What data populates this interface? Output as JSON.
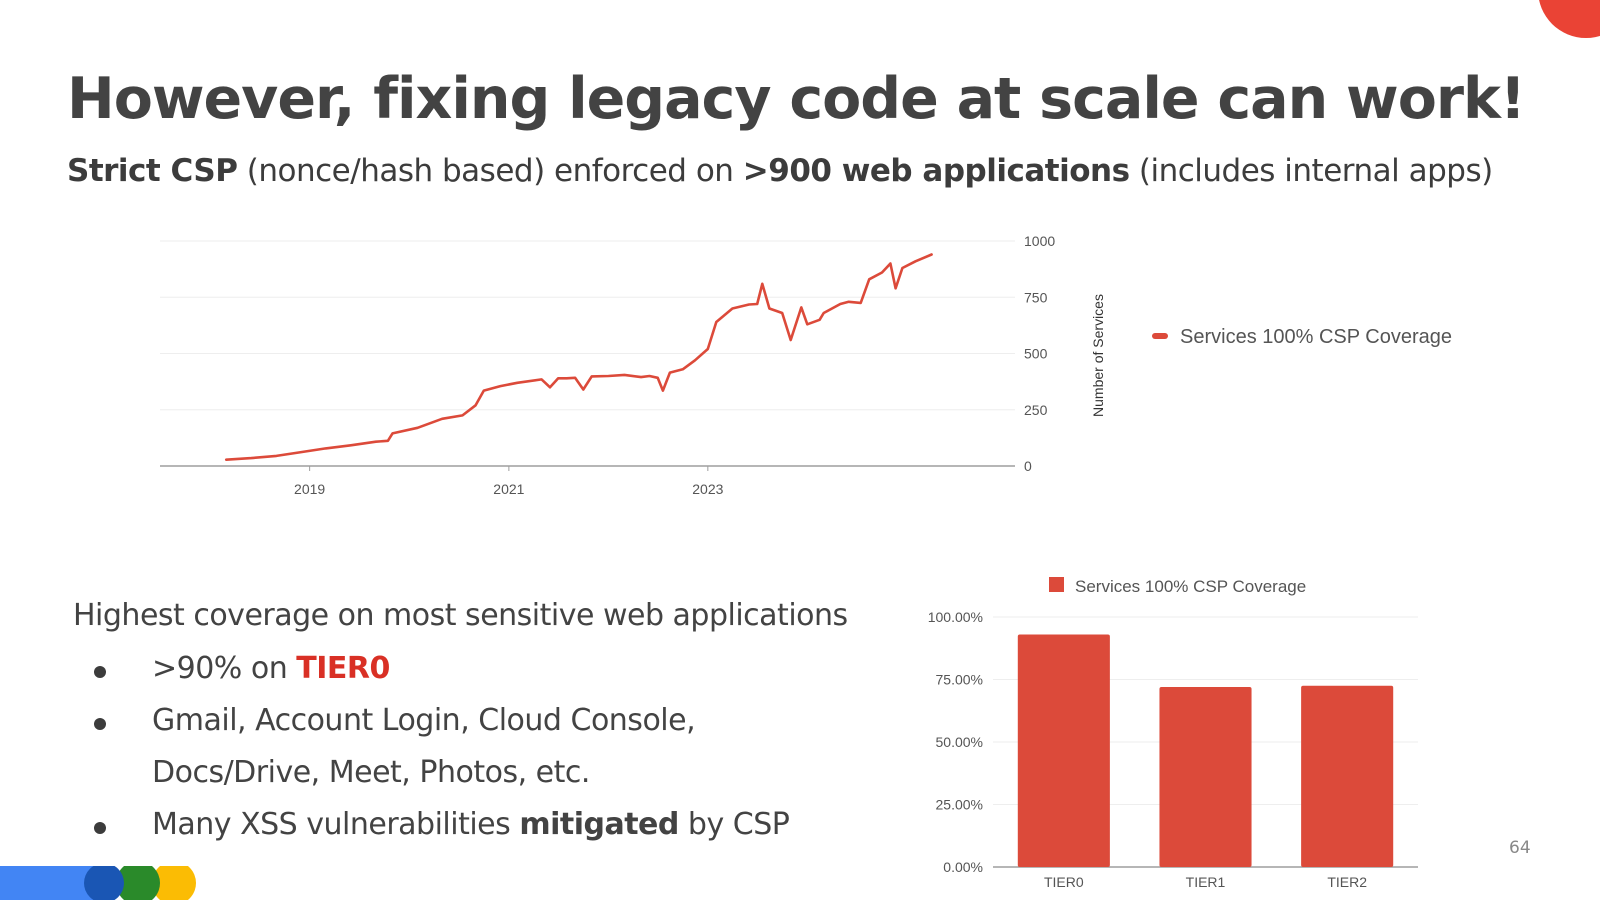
{
  "slide": {
    "title": "However, fixing legacy code at scale can work!",
    "subtitle_parts": [
      {
        "text": "Strict CSP",
        "bold": true
      },
      {
        "text": " (nonce/hash based) enforced on ",
        "bold": false
      },
      {
        "text": ">900 web applications",
        "bold": true
      },
      {
        "text": " (includes internal apps)",
        "bold": false
      }
    ],
    "body_heading": "Highest coverage on most sensitive web applications",
    "bullets": [
      {
        "parts": [
          {
            "text": ">90% on ",
            "style": "normal"
          },
          {
            "text": "TIER0",
            "style": "highlight"
          }
        ]
      },
      {
        "parts": [
          {
            "text": "Gmail, Account Login, Cloud Console,",
            "style": "normal"
          }
        ]
      },
      {
        "parts": [
          {
            "text": "Docs/Drive, Meet, Photos, etc.",
            "style": "normal"
          }
        ],
        "no_bullet": true
      },
      {
        "parts": [
          {
            "text": "Many XSS vulnerabilities ",
            "style": "normal"
          },
          {
            "text": "mitigated",
            "style": "bold"
          },
          {
            "text": " by CSP",
            "style": "normal"
          }
        ]
      }
    ],
    "page_number": "64"
  },
  "colors": {
    "series": "#dc4a3a",
    "highlight": "#d93025",
    "grid": "#eeeeee",
    "axis": "#9e9e9e",
    "tick_text": "#555555",
    "accent_red": "#ea4335",
    "brand_blue": "#4285f4",
    "brand_green": "#34a853",
    "brand_yellow": "#fbbc04",
    "brand_dark_blue": "#1a56b4",
    "brand_dark_green": "#2a8a2a"
  },
  "chart_data": [
    {
      "type": "line",
      "series": [
        {
          "name": "Services 100% CSP Coverage",
          "points": [
            [
              "2018-03-01",
              28
            ],
            [
              "2018-06-01",
              35
            ],
            [
              "2018-09-01",
              45
            ],
            [
              "2018-12-01",
              62
            ],
            [
              "2019-03-01",
              78
            ],
            [
              "2019-06-01",
              92
            ],
            [
              "2019-09-01",
              108
            ],
            [
              "2019-10-15",
              112
            ],
            [
              "2019-11-01",
              145
            ],
            [
              "2020-02-01",
              170
            ],
            [
              "2020-05-01",
              210
            ],
            [
              "2020-07-15",
              225
            ],
            [
              "2020-09-01",
              270
            ],
            [
              "2020-10-01",
              335
            ],
            [
              "2020-12-01",
              355
            ],
            [
              "2021-02-01",
              370
            ],
            [
              "2021-05-01",
              385
            ],
            [
              "2021-06-01",
              350
            ],
            [
              "2021-07-01",
              390
            ],
            [
              "2021-08-01",
              390
            ],
            [
              "2021-09-01",
              392
            ],
            [
              "2021-10-01",
              340
            ],
            [
              "2021-11-01",
              398
            ],
            [
              "2022-01-01",
              400
            ],
            [
              "2022-03-01",
              405
            ],
            [
              "2022-05-01",
              395
            ],
            [
              "2022-06-01",
              400
            ],
            [
              "2022-07-01",
              392
            ],
            [
              "2022-07-20",
              335
            ],
            [
              "2022-08-15",
              415
            ],
            [
              "2022-10-01",
              430
            ],
            [
              "2022-11-15",
              470
            ],
            [
              "2023-01-01",
              520
            ],
            [
              "2023-02-01",
              640
            ],
            [
              "2023-04-01",
              700
            ],
            [
              "2023-06-01",
              718
            ],
            [
              "2023-07-01",
              720
            ],
            [
              "2023-07-20",
              810
            ],
            [
              "2023-08-15",
              700
            ],
            [
              "2023-10-01",
              680
            ],
            [
              "2023-11-01",
              560
            ],
            [
              "2023-12-10",
              705
            ],
            [
              "2024-01-01",
              630
            ],
            [
              "2024-02-15",
              650
            ],
            [
              "2024-03-01",
              680
            ],
            [
              "2024-05-01",
              720
            ],
            [
              "2024-06-01",
              730
            ],
            [
              "2024-07-15",
              725
            ],
            [
              "2024-08-15",
              830
            ],
            [
              "2024-10-01",
              860
            ],
            [
              "2024-11-01",
              900
            ],
            [
              "2024-11-20",
              790
            ],
            [
              "2024-12-15",
              880
            ],
            [
              "2025-02-01",
              910
            ],
            [
              "2025-04-01",
              940
            ]
          ]
        }
      ],
      "x_ticks": [
        "2019",
        "2021",
        "2023"
      ],
      "y_ticks": [
        "0",
        "250",
        "500",
        "750",
        "1000"
      ],
      "ylabel": "Number of Services",
      "ylim": [
        0,
        1000
      ],
      "grid": true,
      "legend": "right"
    },
    {
      "type": "bar",
      "categories": [
        "TIER0",
        "TIER1",
        "TIER2"
      ],
      "series": [
        {
          "name": "Services 100% CSP Coverage",
          "values": [
            93,
            72,
            72.5
          ]
        }
      ],
      "y_ticks": [
        "0.00%",
        "25.00%",
        "50.00%",
        "75.00%",
        "100.00%"
      ],
      "ylim": [
        0,
        100
      ],
      "grid": true,
      "legend": "top"
    }
  ]
}
